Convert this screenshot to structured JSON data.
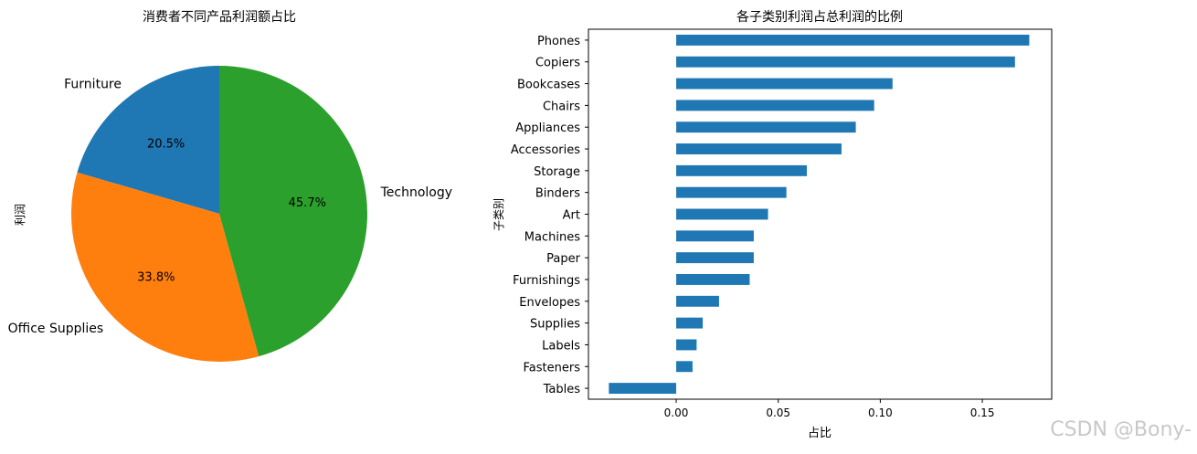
{
  "chart_data": [
    {
      "type": "pie",
      "title": "消费者不同产品利润额占比",
      "ylabel": "利润",
      "slices": [
        {
          "label": "Furniture",
          "pct": 20.5,
          "pct_label": "20.5%",
          "color": "#1f77b4"
        },
        {
          "label": "Office Supplies",
          "pct": 33.8,
          "pct_label": "33.8%",
          "color": "#ff7f0e"
        },
        {
          "label": "Technology",
          "pct": 45.7,
          "pct_label": "45.7%",
          "color": "#2ca02c"
        }
      ],
      "start_angle_deg": 90,
      "direction": "counterclockwise"
    },
    {
      "type": "bar",
      "orientation": "horizontal",
      "title": "各子类别利润占总利润的比例",
      "xlabel": "占比",
      "ylabel": "子类别",
      "categories": [
        "Phones",
        "Copiers",
        "Bookcases",
        "Chairs",
        "Appliances",
        "Accessories",
        "Storage",
        "Binders",
        "Art",
        "Machines",
        "Paper",
        "Furnishings",
        "Envelopes",
        "Supplies",
        "Labels",
        "Fasteners",
        "Tables"
      ],
      "values": [
        0.173,
        0.166,
        0.106,
        0.097,
        0.088,
        0.081,
        0.064,
        0.054,
        0.045,
        0.038,
        0.038,
        0.036,
        0.021,
        0.013,
        0.01,
        0.008,
        -0.033
      ],
      "xlim": [
        -0.043,
        0.184
      ],
      "xticks": [
        0.0,
        0.05,
        0.1,
        0.15
      ],
      "xtick_labels": [
        "0.00",
        "0.05",
        "0.10",
        "0.15"
      ],
      "color": "#1f77b4",
      "grid": false
    }
  ],
  "watermark": "CSDN @Bony-"
}
